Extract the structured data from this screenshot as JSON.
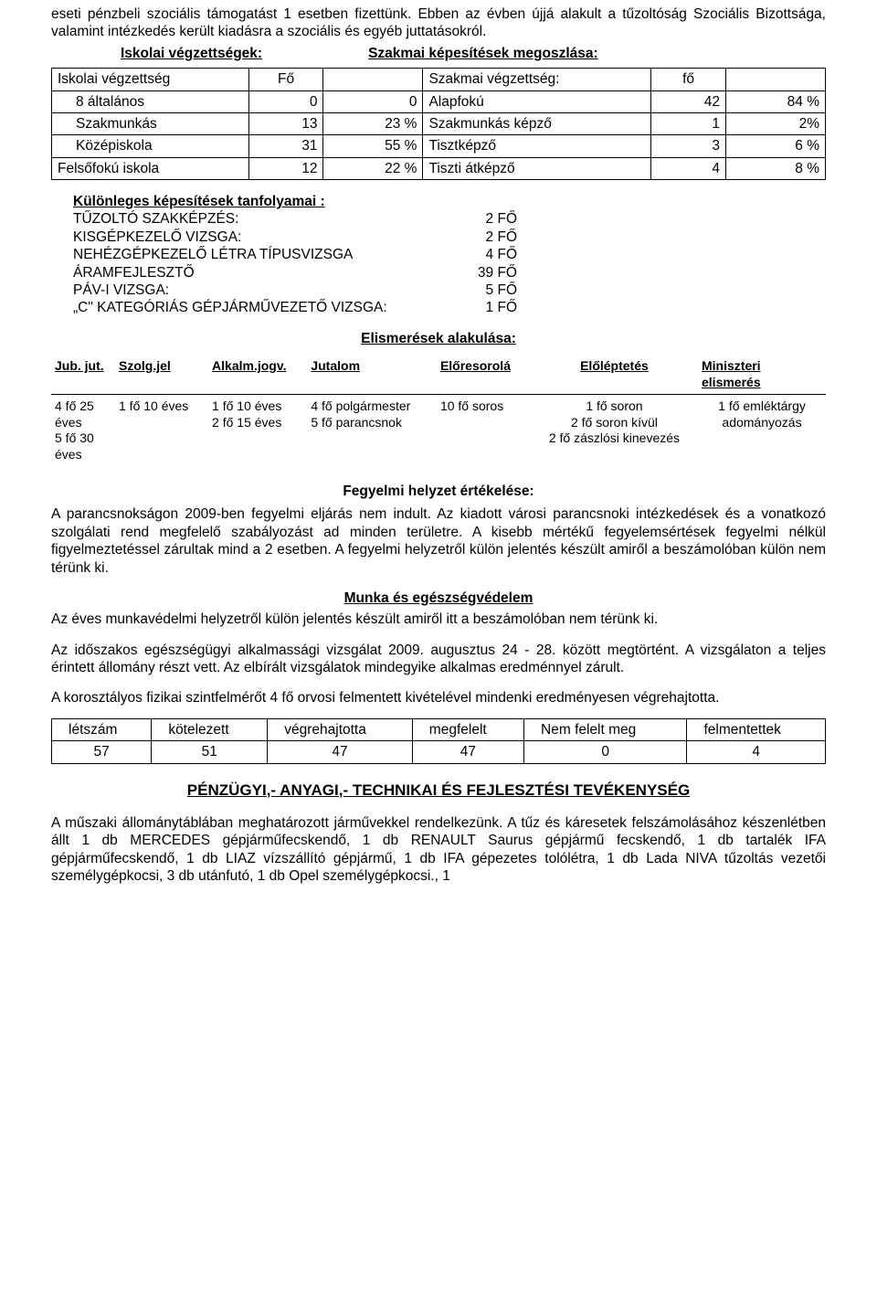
{
  "intro": "eseti pénzbeli szociális támogatást 1 esetben fizettünk. Ebben az évben újjá alakult a tűzoltóság Szociális Bizottsága, valamint intézkedés került kiadásra a szociális és egyéb juttatásokról.",
  "heading_left": "Iskolai végzettségek:",
  "heading_right": "Szakmai képesítések megoszlása:",
  "edu_table": {
    "header": [
      "Iskolai végzettség",
      "Fő",
      "",
      "Szakmai végzettség:",
      "fő",
      ""
    ],
    "rows": [
      [
        "8 általános",
        "0",
        "0",
        "Alapfokú",
        "42",
        "84 %"
      ],
      [
        "Szakmunkás",
        "13",
        "23 %",
        "Szakmunkás képző",
        "1",
        "2%"
      ],
      [
        "Középiskola",
        "31",
        "55 %",
        "Tisztképző",
        "3",
        "6 %"
      ],
      [
        "Felsőfokú iskola",
        "12",
        "22 %",
        "Tiszti átképző",
        "4",
        "8 %"
      ]
    ],
    "col_widths": [
      "170px",
      "60px",
      "70px",
      "200px",
      "60px",
      "70px"
    ]
  },
  "spec_title": "Különleges képesítések tanfolyamai :",
  "spec_rows": [
    [
      "TŰZOLTÓ SZAKKÉPZÉS:",
      "2 FŐ"
    ],
    [
      "KISGÉPKEZELŐ VIZSGA:",
      "2 FŐ"
    ],
    [
      "NEHÉZGÉPKEZELŐ LÉTRA TÍPUSVIZSGA",
      "4 FŐ"
    ],
    [
      "ÁRAMFEJLESZTŐ",
      "39 FŐ"
    ],
    [
      "PÁV-I VIZSGA:",
      "5  FŐ"
    ],
    [
      "„C\" KATEGÓRIÁS GÉPJÁRMŰVEZETŐ VIZSGA:",
      "1  FŐ"
    ]
  ],
  "recog_title": "Elismerések alakulása:",
  "recog_header": [
    "Jub. jut.",
    "Szolg.jel",
    "Alkalm.jogv.",
    "Jutalom",
    "Előresorolá",
    "Előléptetés",
    "Miniszteri elismerés"
  ],
  "recog_row": [
    "4 fő 25 éves\n5 fő 30 éves",
    "1 fő 10 éves",
    "1 fő 10 éves\n2 fő 15 éves",
    "4 fő polgármester\n5 fő parancsnok",
    "10 fő soros",
    "1 fő soron\n2 fő soron kívül\n2 fő zászlósi kinevezés",
    "1 fő emléktárgy adományozás"
  ],
  "fegyelmi_title": "Fegyelmi helyzet értékelése:",
  "fegyelmi_body": "A parancsnokságon 2009-ben fegyelmi eljárás nem indult. Az kiadott városi parancsnoki intézkedések és a vonatkozó szolgálati rend megfelelő szabályozást ad minden területre. A kisebb mértékű fegyelemsértések fegyelmi nélkül figyelmeztetéssel zárultak mind a 2 esetben. A fegyelmi helyzetről külön jelentés készült amiről a beszámolóban külön nem térünk ki.",
  "munka_title": "Munka és egészségvédelem",
  "munka_p1": "Az éves munkavédelmi helyzetről külön jelentés készült amiről  itt a beszámolóban nem térünk ki.",
  "munka_p2": "Az időszakos egészségügyi alkalmassági vizsgálat 2009. augusztus 24 - 28. között megtörtént. A vizsgálaton a teljes érintett állomány részt vett. Az elbírált vizsgálatok mindegyike alkalmas eredménnyel zárult.",
  "munka_p3": "A korosztályos fizikai szintfelmérőt 4 fő orvosi felmentett kivételével mindenki eredményesen végrehajtotta.",
  "phys_header": [
    "létszám",
    "kötelezett",
    "végrehajtotta",
    "megfelelt",
    "Nem felelt meg",
    "felmentettek"
  ],
  "phys_row": [
    "57",
    "51",
    "47",
    "47",
    "0",
    "4"
  ],
  "penz_title": "PÉNZÜGYI,- ANYAGI,- TECHNIKAI ÉS FEJLESZTÉSI TEVÉKENYSÉG",
  "penz_body": "A műszaki állománytáblában meghatározott járművekkel rendelkezünk. A tűz és káresetek felszámolásához készenlétben állt 1 db MERCEDES gépjárműfecskendő, 1 db RENAULT Saurus gépjármű fecskendő, 1 db tartalék IFA gépjárműfecskendő, 1 db LIAZ vízszállító gépjármű, 1 db IFA gépezetes tolólétra, 1 db Lada NIVA tűzoltás vezetői személygépkocsi, 3 db utánfutó, 1 db Opel személygépkocsi., 1"
}
